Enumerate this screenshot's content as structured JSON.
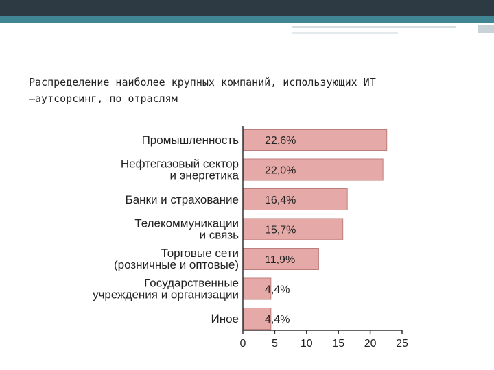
{
  "title_lines": [
    "Распределение наиболее крупных компаний, использующих ИТ",
    "–аутсорсинг, по отраслям"
  ],
  "colors": {
    "bar_fill": "#e5aaa8",
    "bar_stroke": "#bd7f7d",
    "axis": "#333333",
    "header_dark": "#2d3a44",
    "header_accent": "#3f8593"
  },
  "chart_data": {
    "type": "bar",
    "orientation": "horizontal",
    "categories": [
      [
        "Промышленность"
      ],
      [
        "Нефтегазовый сектор",
        "и энергетика"
      ],
      [
        "Банки и страхование"
      ],
      [
        "Телекоммуникации",
        "и связь"
      ],
      [
        "Торговые сети",
        "(розничные и оптовые)"
      ],
      [
        "Государственные",
        "учреждения и организации"
      ],
      [
        "Иное"
      ]
    ],
    "values": [
      22.6,
      22.0,
      16.4,
      15.7,
      11.9,
      4.4,
      4.4
    ],
    "value_labels": [
      "22,6%",
      "22,0%",
      "16,4%",
      "15,7%",
      "11,9%",
      "4,4%",
      "4,4%"
    ],
    "xlim": [
      0,
      25
    ],
    "xticks": [
      "0",
      "5",
      "10",
      "15",
      "20",
      "25"
    ],
    "grid": false
  }
}
